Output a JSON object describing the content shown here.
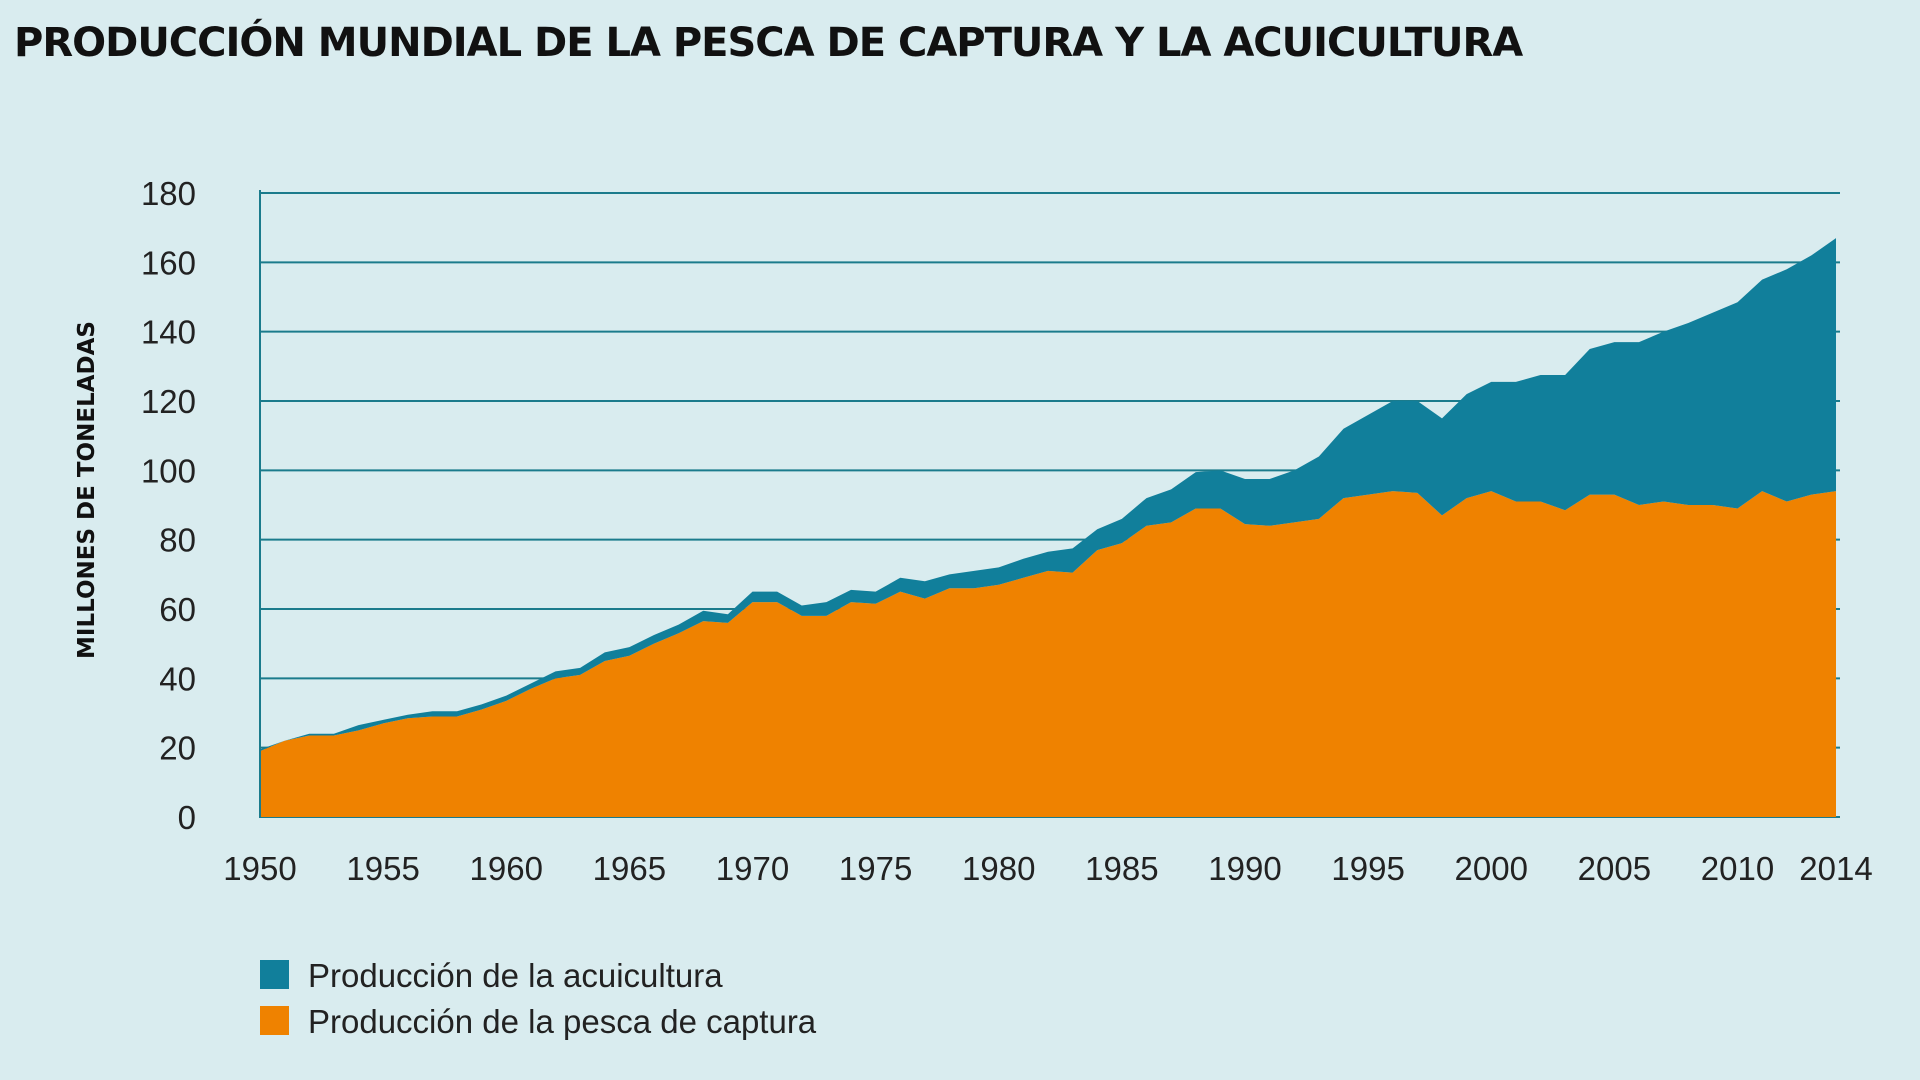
{
  "chart_data": {
    "type": "area",
    "stacked": true,
    "title": "PRODUCCIÓN MUNDIAL DE LA PESCA DE CAPTURA Y LA ACUICULTURA",
    "ylabel": "MILLONES DE TONELADAS",
    "xlabel": "",
    "ylim": [
      0,
      180
    ],
    "yticks": [
      0,
      20,
      40,
      60,
      80,
      100,
      120,
      140,
      160,
      180
    ],
    "xticks": [
      1950,
      1955,
      1960,
      1965,
      1970,
      1975,
      1980,
      1985,
      1990,
      1995,
      2000,
      2005,
      2010,
      2014
    ],
    "xlim": [
      1950,
      2014
    ],
    "grid": "horizontal",
    "legend_position": "bottom-left",
    "x": [
      1950,
      1951,
      1952,
      1953,
      1954,
      1955,
      1956,
      1957,
      1958,
      1959,
      1960,
      1961,
      1962,
      1963,
      1964,
      1965,
      1966,
      1967,
      1968,
      1969,
      1970,
      1971,
      1972,
      1973,
      1974,
      1975,
      1976,
      1977,
      1978,
      1979,
      1980,
      1981,
      1982,
      1983,
      1984,
      1985,
      1986,
      1987,
      1988,
      1989,
      1990,
      1991,
      1992,
      1993,
      1994,
      1995,
      1996,
      1997,
      1998,
      1999,
      2000,
      2001,
      2002,
      2003,
      2004,
      2005,
      2006,
      2007,
      2008,
      2009,
      2010,
      2011,
      2012,
      2013,
      2014
    ],
    "series": [
      {
        "name": "Producción de la pesca de captura",
        "color": "#ef8200",
        "values": [
          19,
          22,
          23.5,
          23.5,
          25,
          27,
          28.5,
          29,
          29,
          31,
          33.5,
          37,
          40,
          41,
          45,
          46.5,
          50,
          53,
          56.5,
          56,
          62,
          62,
          58,
          58,
          62,
          61.5,
          65,
          63,
          66,
          66,
          67,
          69,
          71,
          70.5,
          77,
          79,
          84,
          85,
          89,
          89,
          84.5,
          84,
          85,
          86,
          92,
          93,
          94,
          93.5,
          87,
          92,
          94,
          91,
          91,
          88.5,
          93,
          93,
          90,
          91,
          90,
          90,
          89,
          94,
          91,
          93,
          94
        ]
      },
      {
        "name": "Producción de la acuicultura",
        "color": "#117f9b",
        "values": [
          0.5,
          0,
          0.5,
          0.5,
          1.5,
          1,
          1,
          1.5,
          1.5,
          1.5,
          1.5,
          1.5,
          2,
          2,
          2.5,
          2.5,
          2.5,
          2.5,
          3,
          2.5,
          3,
          3,
          3,
          4,
          3.5,
          3.5,
          4,
          5,
          4,
          5,
          5,
          5.5,
          5.5,
          7,
          6,
          7,
          8,
          9.5,
          10.5,
          11,
          13,
          13.5,
          15,
          18,
          20,
          23,
          26,
          26.5,
          28,
          30,
          31.5,
          34.5,
          36.5,
          39,
          42,
          44,
          47,
          49,
          52.5,
          55.5,
          59.5,
          61,
          67,
          69,
          73
        ]
      }
    ],
    "legend": [
      {
        "label": "Producción de la acuicultura",
        "color": "#117f9b"
      },
      {
        "label": "Producción de la pesca de captura",
        "color": "#ef8200"
      }
    ],
    "gridline_color": "#1b7b8c",
    "background": "#d9ecef"
  }
}
